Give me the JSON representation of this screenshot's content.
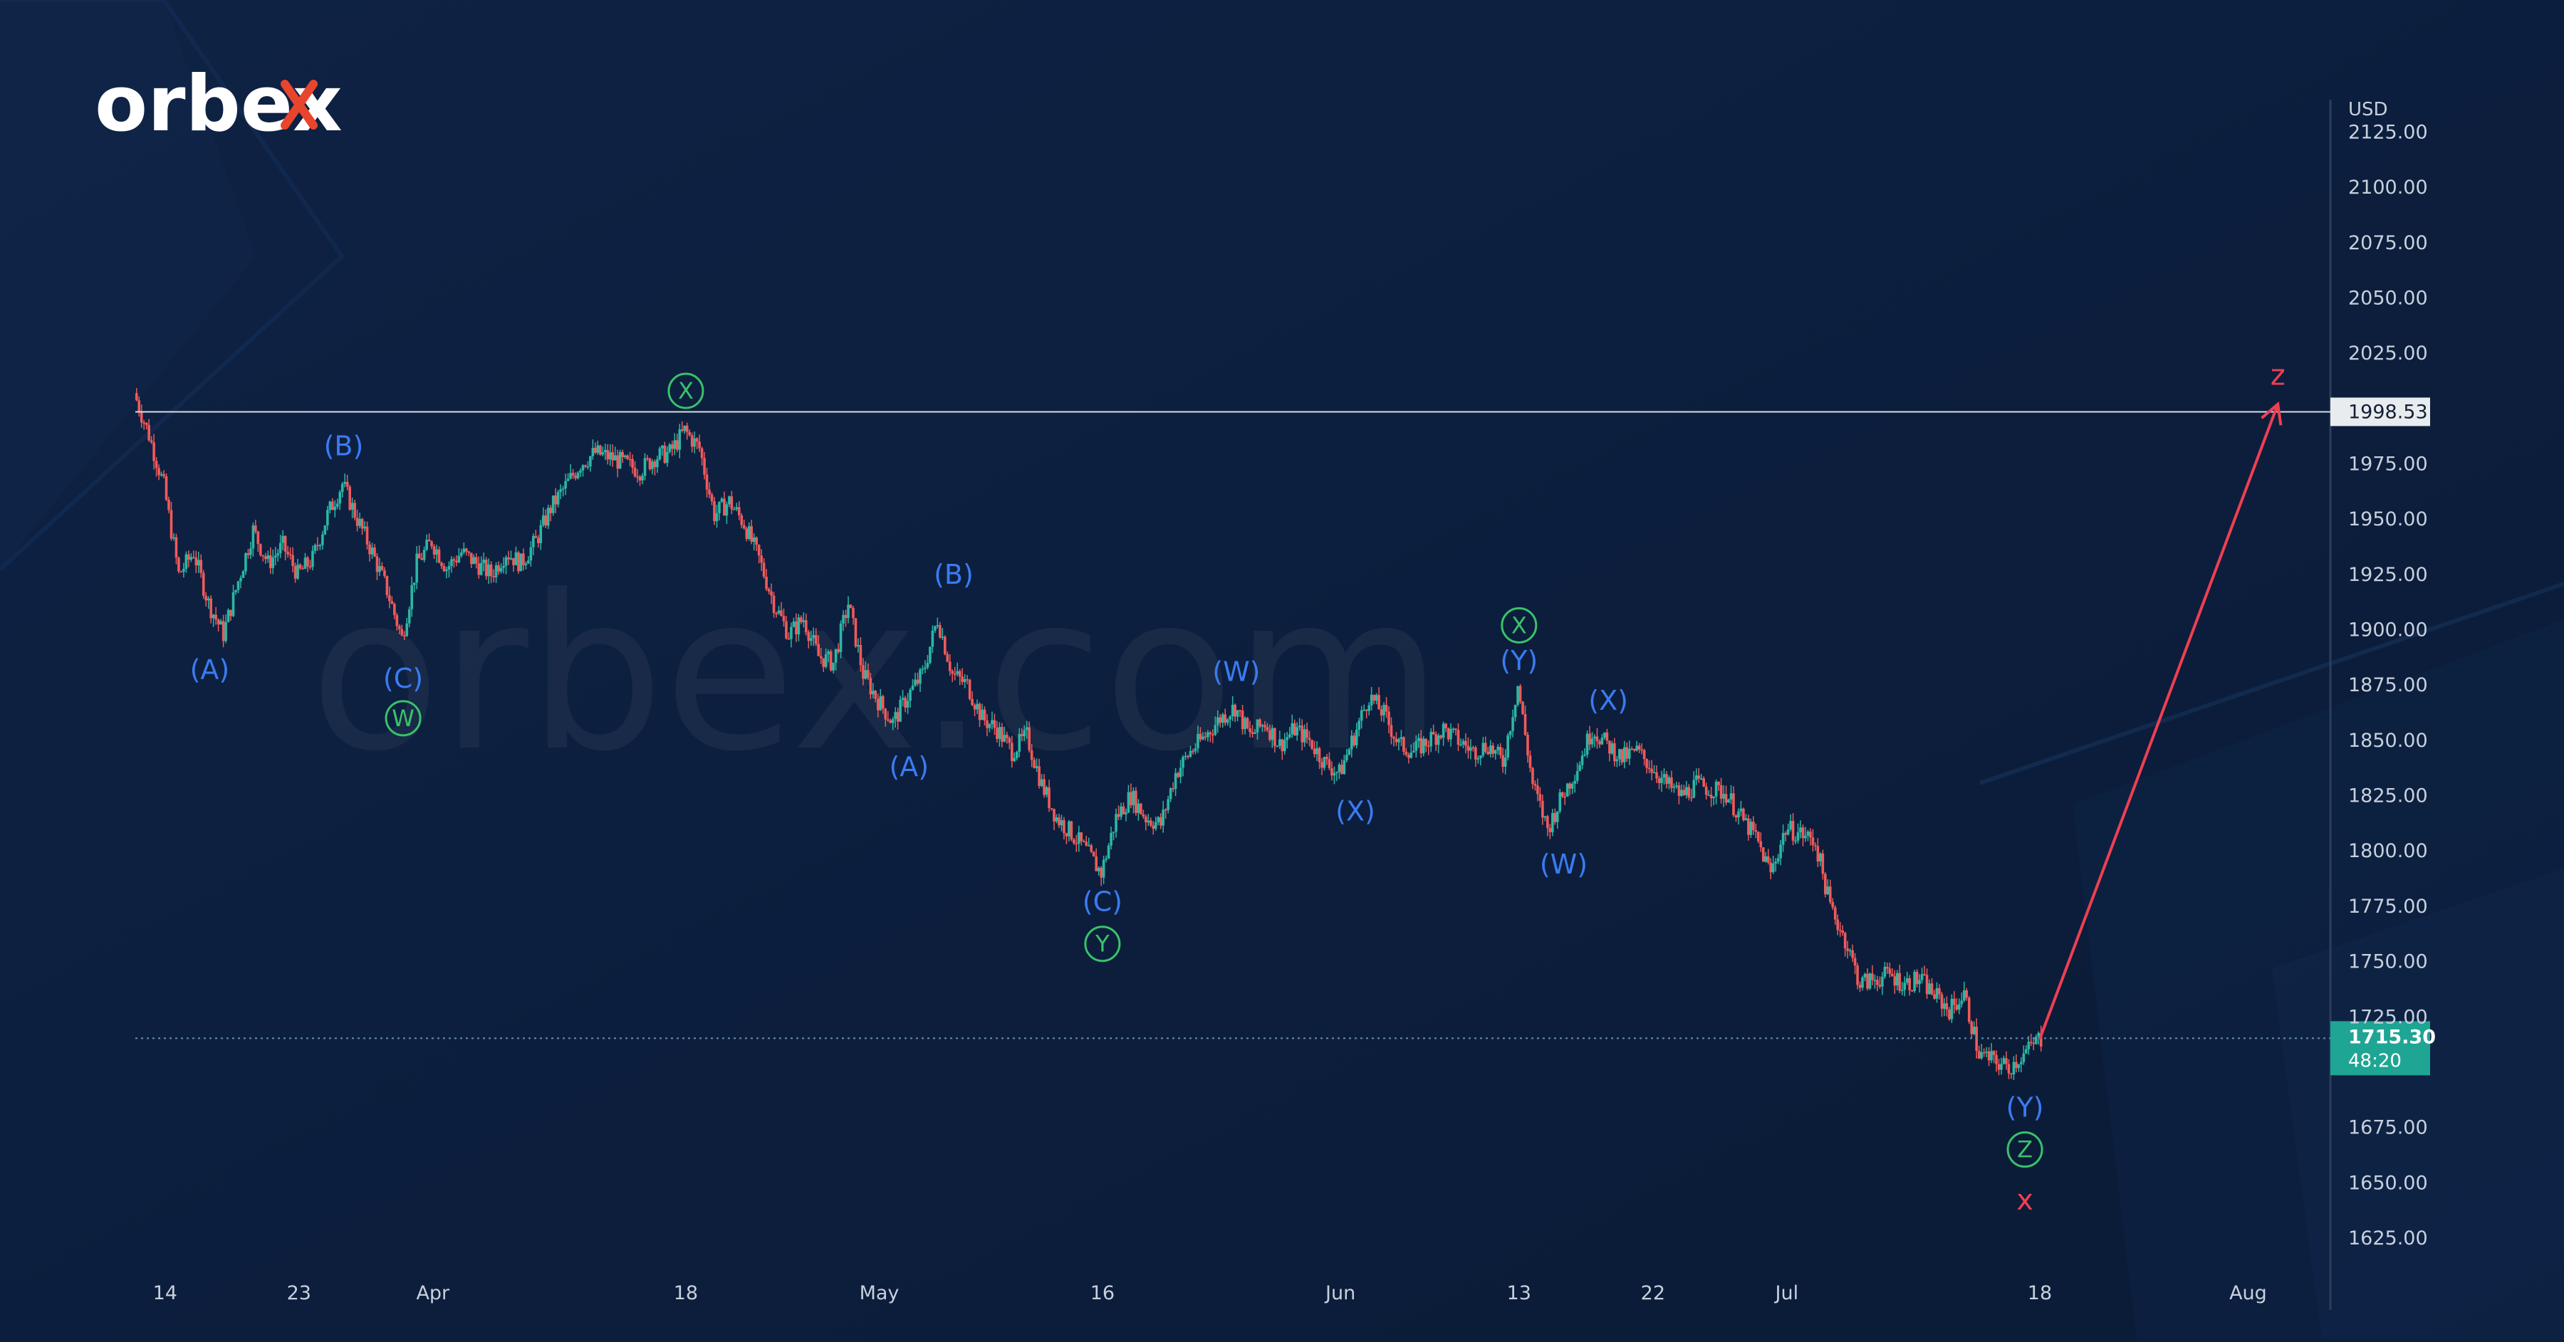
{
  "brand": {
    "logo_text": "orbex",
    "watermark_text": "orbex.com"
  },
  "colors": {
    "background": "#0c1e3c",
    "candle_up": "#2bb7a4",
    "candle_down": "#f05a5a",
    "wave_blue": "#3b7bf2",
    "wave_green": "#39c26b",
    "forecast_red": "#ef3f52",
    "current_price_bg": "#1fa594",
    "level_line": "#d9dde3"
  },
  "chart_data": {
    "type": "candlestick",
    "currency_label": "USD",
    "y_ticks": [
      "2125.00",
      "2100.00",
      "2075.00",
      "2050.00",
      "2025.00",
      "1975.00",
      "1950.00",
      "1925.00",
      "1900.00",
      "1875.00",
      "1850.00",
      "1825.00",
      "1800.00",
      "1775.00",
      "1750.00",
      "1725.00",
      "1675.00",
      "1650.00",
      "1625.00"
    ],
    "x_ticks": [
      "14",
      "23",
      "Apr",
      "18",
      "May",
      "16",
      "Jun",
      "13",
      "22",
      "Jul",
      "18",
      "Aug"
    ],
    "x_tick_dates": [
      "2022-03-14",
      "2022-03-23",
      "2022-04-01",
      "2022-04-18",
      "2022-05-01",
      "2022-05-16",
      "2022-06-01",
      "2022-06-13",
      "2022-06-22",
      "2022-07-01",
      "2022-07-18",
      "2022-08-01"
    ],
    "x_range": [
      "2022-03-12",
      "2022-08-05"
    ],
    "ylim": [
      1615,
      2130
    ],
    "level": {
      "value": 1998.53,
      "label": "1998.53"
    },
    "current_price": {
      "value": 1715.3,
      "label": "1715.30",
      "countdown": "48:20"
    },
    "price_path": [
      [
        "2022-03-12",
        2007
      ],
      [
        "2022-03-13",
        1988
      ],
      [
        "2022-03-14",
        1965
      ],
      [
        "2022-03-15",
        1925
      ],
      [
        "2022-03-16",
        1935
      ],
      [
        "2022-03-17",
        1912
      ],
      [
        "2022-03-18",
        1898
      ],
      [
        "2022-03-19",
        1922
      ],
      [
        "2022-03-20",
        1945
      ],
      [
        "2022-03-21",
        1930
      ],
      [
        "2022-03-22",
        1938
      ],
      [
        "2022-03-23",
        1925
      ],
      [
        "2022-03-24",
        1932
      ],
      [
        "2022-03-25",
        1952
      ],
      [
        "2022-03-26",
        1966
      ],
      [
        "2022-03-27",
        1950
      ],
      [
        "2022-03-28",
        1935
      ],
      [
        "2022-03-29",
        1918
      ],
      [
        "2022-03-30",
        1896
      ],
      [
        "2022-03-31",
        1930
      ],
      [
        "2022-04-01",
        1940
      ],
      [
        "2022-04-02",
        1928
      ],
      [
        "2022-04-03",
        1935
      ],
      [
        "2022-04-04",
        1930
      ],
      [
        "2022-04-05",
        1925
      ],
      [
        "2022-04-06",
        1935
      ],
      [
        "2022-04-07",
        1930
      ],
      [
        "2022-04-08",
        1940
      ],
      [
        "2022-04-09",
        1955
      ],
      [
        "2022-04-10",
        1965
      ],
      [
        "2022-04-11",
        1975
      ],
      [
        "2022-04-12",
        1980
      ],
      [
        "2022-04-13",
        1978
      ],
      [
        "2022-04-14",
        1975
      ],
      [
        "2022-04-15",
        1972
      ],
      [
        "2022-04-16",
        1978
      ],
      [
        "2022-04-17",
        1980
      ],
      [
        "2022-04-18",
        1990
      ],
      [
        "2022-04-19",
        1982
      ],
      [
        "2022-04-20",
        1952
      ],
      [
        "2022-04-21",
        1958
      ],
      [
        "2022-04-22",
        1948
      ],
      [
        "2022-04-23",
        1932
      ],
      [
        "2022-04-24",
        1912
      ],
      [
        "2022-04-25",
        1898
      ],
      [
        "2022-04-26",
        1905
      ],
      [
        "2022-04-27",
        1888
      ],
      [
        "2022-04-28",
        1885
      ],
      [
        "2022-04-29",
        1912
      ],
      [
        "2022-04-30",
        1880
      ],
      [
        "2022-05-01",
        1868
      ],
      [
        "2022-05-02",
        1858
      ],
      [
        "2022-05-03",
        1870
      ],
      [
        "2022-05-04",
        1880
      ],
      [
        "2022-05-05",
        1905
      ],
      [
        "2022-05-06",
        1880
      ],
      [
        "2022-05-07",
        1875
      ],
      [
        "2022-05-08",
        1860
      ],
      [
        "2022-05-09",
        1855
      ],
      [
        "2022-05-10",
        1845
      ],
      [
        "2022-05-11",
        1852
      ],
      [
        "2022-05-12",
        1830
      ],
      [
        "2022-05-13",
        1815
      ],
      [
        "2022-05-14",
        1808
      ],
      [
        "2022-05-15",
        1800
      ],
      [
        "2022-05-16",
        1790
      ],
      [
        "2022-05-17",
        1815
      ],
      [
        "2022-05-18",
        1825
      ],
      [
        "2022-05-19",
        1815
      ],
      [
        "2022-05-20",
        1812
      ],
      [
        "2022-05-21",
        1835
      ],
      [
        "2022-05-22",
        1845
      ],
      [
        "2022-05-23",
        1852
      ],
      [
        "2022-05-24",
        1860
      ],
      [
        "2022-05-25",
        1865
      ],
      [
        "2022-05-26",
        1852
      ],
      [
        "2022-05-27",
        1858
      ],
      [
        "2022-05-28",
        1848
      ],
      [
        "2022-05-29",
        1855
      ],
      [
        "2022-05-30",
        1850
      ],
      [
        "2022-05-31",
        1840
      ],
      [
        "2022-06-01",
        1835
      ],
      [
        "2022-06-02",
        1852
      ],
      [
        "2022-06-03",
        1870
      ],
      [
        "2022-06-04",
        1862
      ],
      [
        "2022-06-05",
        1848
      ],
      [
        "2022-06-06",
        1845
      ],
      [
        "2022-06-07",
        1850
      ],
      [
        "2022-06-08",
        1855
      ],
      [
        "2022-06-09",
        1850
      ],
      [
        "2022-06-10",
        1845
      ],
      [
        "2022-06-11",
        1848
      ],
      [
        "2022-06-12",
        1840
      ],
      [
        "2022-06-13",
        1875
      ],
      [
        "2022-06-14",
        1830
      ],
      [
        "2022-06-15",
        1810
      ],
      [
        "2022-06-16",
        1825
      ],
      [
        "2022-06-17",
        1838
      ],
      [
        "2022-06-18",
        1855
      ],
      [
        "2022-06-19",
        1848
      ],
      [
        "2022-06-20",
        1842
      ],
      [
        "2022-06-21",
        1845
      ],
      [
        "2022-06-22",
        1838
      ],
      [
        "2022-06-23",
        1830
      ],
      [
        "2022-06-24",
        1825
      ],
      [
        "2022-06-25",
        1830
      ],
      [
        "2022-06-26",
        1828
      ],
      [
        "2022-06-27",
        1826
      ],
      [
        "2022-06-28",
        1815
      ],
      [
        "2022-06-29",
        1806
      ],
      [
        "2022-06-30",
        1790
      ],
      [
        "2022-07-01",
        1810
      ],
      [
        "2022-07-02",
        1808
      ],
      [
        "2022-07-03",
        1804
      ],
      [
        "2022-07-04",
        1775
      ],
      [
        "2022-07-05",
        1760
      ],
      [
        "2022-07-06",
        1740
      ],
      [
        "2022-07-07",
        1742
      ],
      [
        "2022-07-08",
        1744
      ],
      [
        "2022-07-09",
        1740
      ],
      [
        "2022-07-10",
        1742
      ],
      [
        "2022-07-11",
        1735
      ],
      [
        "2022-07-12",
        1728
      ],
      [
        "2022-07-13",
        1735
      ],
      [
        "2022-07-14",
        1708
      ],
      [
        "2022-07-15",
        1705
      ],
      [
        "2022-07-16",
        1702
      ],
      [
        "2022-07-17",
        1708
      ],
      [
        "2022-07-18",
        1715
      ]
    ],
    "wave_labels": [
      {
        "text": "(A)",
        "date": "2022-03-17",
        "price": 1882,
        "color": "blue"
      },
      {
        "text": "(B)",
        "date": "2022-03-26",
        "price": 1983,
        "color": "blue"
      },
      {
        "text": "(C)",
        "date": "2022-03-30",
        "price": 1878,
        "color": "blue"
      },
      {
        "text": "W",
        "date": "2022-03-30",
        "price": 1860,
        "color": "green",
        "circled": true
      },
      {
        "text": "X",
        "date": "2022-04-18",
        "price": 2008,
        "color": "green",
        "circled": true
      },
      {
        "text": "(A)",
        "date": "2022-05-03",
        "price": 1838,
        "color": "blue"
      },
      {
        "text": "(B)",
        "date": "2022-05-06",
        "price": 1925,
        "color": "blue"
      },
      {
        "text": "(C)",
        "date": "2022-05-16",
        "price": 1777,
        "color": "blue"
      },
      {
        "text": "Y",
        "date": "2022-05-16",
        "price": 1758,
        "color": "green",
        "circled": true
      },
      {
        "text": "(W)",
        "date": "2022-05-25",
        "price": 1881,
        "color": "blue"
      },
      {
        "text": "(X)",
        "date": "2022-06-02",
        "price": 1818,
        "color": "blue"
      },
      {
        "text": "X",
        "date": "2022-06-13",
        "price": 1902,
        "color": "green",
        "circled": true
      },
      {
        "text": "(Y)",
        "date": "2022-06-13",
        "price": 1886,
        "color": "blue"
      },
      {
        "text": "(X)",
        "date": "2022-06-19",
        "price": 1868,
        "color": "blue"
      },
      {
        "text": "(W)",
        "date": "2022-06-16",
        "price": 1794,
        "color": "blue"
      },
      {
        "text": "(Y)",
        "date": "2022-07-17",
        "price": 1684,
        "color": "blue"
      },
      {
        "text": "Z",
        "date": "2022-07-17",
        "price": 1665,
        "color": "green",
        "circled": true
      },
      {
        "text": "x",
        "date": "2022-07-17",
        "price": 1642,
        "color": "red"
      },
      {
        "text": "z",
        "date": "2022-08-03",
        "price": 2015,
        "color": "red"
      }
    ],
    "forecast": {
      "from": [
        "2022-07-18",
        1715
      ],
      "to": [
        "2022-08-03",
        2002
      ]
    }
  }
}
